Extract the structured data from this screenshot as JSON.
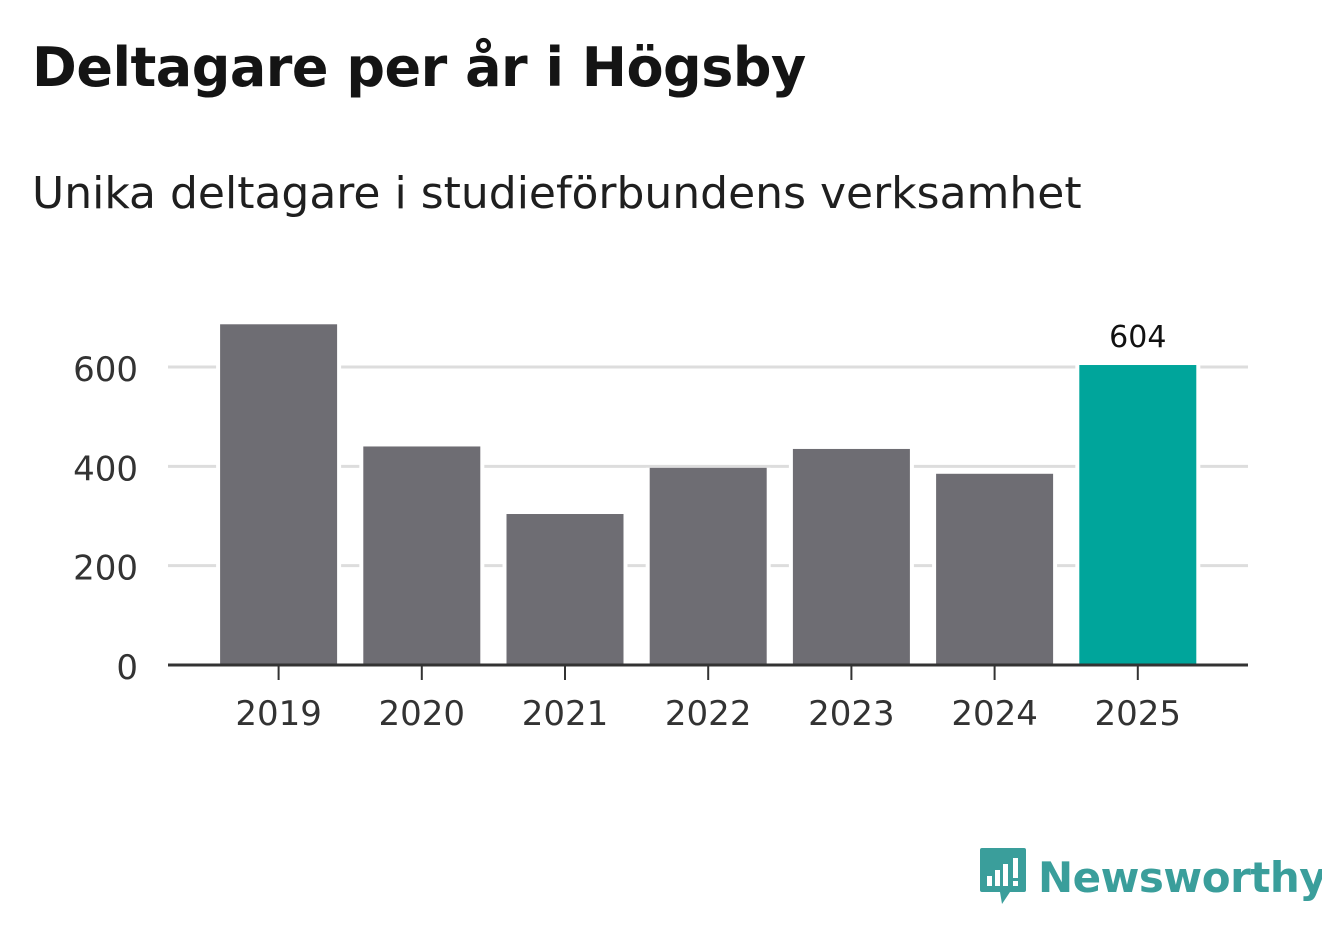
{
  "header": {
    "title": "Deltagare per år i Högsby",
    "subtitle": "Unika deltagare i studieförbundens verksamhet"
  },
  "brand": {
    "name": "Newsworthy",
    "icon": "newsworthy-logo-icon",
    "color": "#3a9e9b"
  },
  "chart_data": {
    "type": "bar",
    "categories": [
      "2019",
      "2020",
      "2021",
      "2022",
      "2023",
      "2024",
      "2025"
    ],
    "values": [
      686,
      440,
      304,
      397,
      435,
      385,
      604
    ],
    "ylim": [
      0,
      700
    ],
    "yticks": [
      0,
      200,
      400,
      600
    ],
    "grid": true,
    "highlight_index": 6,
    "data_labels": [
      {
        "index": 6,
        "text": "604"
      }
    ],
    "colors": {
      "bar": "#6e6d73",
      "highlight": "#00a59b",
      "grid": "#dddddd",
      "axis": "#333333"
    }
  }
}
